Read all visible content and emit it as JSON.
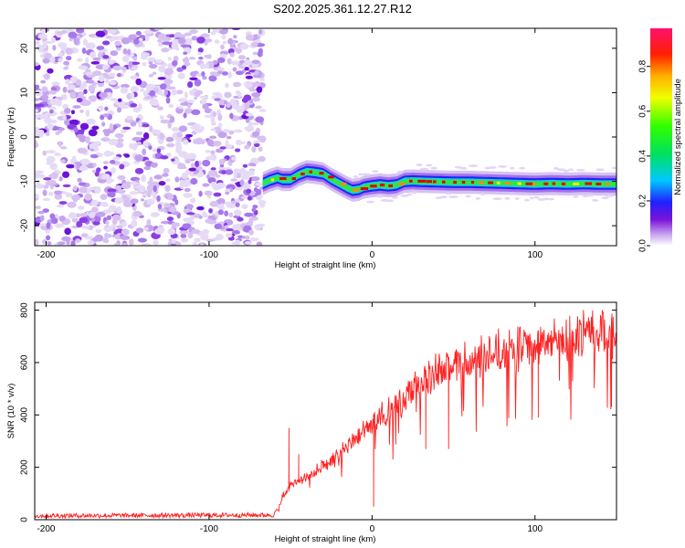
{
  "title": "S202.2025.361.12.27.R12",
  "colors": {
    "background": "#ffffff",
    "axes": "#000000",
    "snr_line": "#ff2020",
    "colormap": [
      "#ffffff",
      "#d9c4f2",
      "#b46cf0",
      "#7a13d8",
      "#2626ff",
      "#0fc8e8",
      "#12e040",
      "#ffff00",
      "#ff9000",
      "#e00000",
      "#ff2060"
    ]
  },
  "chart_data": [
    {
      "type": "heatmap",
      "id": "spectrogram",
      "xlabel": "Height of straight line (km)",
      "ylabel": "Frequency (Hz)",
      "xlim": [
        -207,
        150
      ],
      "ylim": [
        -24.5,
        24.5
      ],
      "xticks": [
        -200,
        -100,
        0,
        100
      ],
      "xtick_labels": [
        "-200",
        "-100",
        "0",
        "100"
      ],
      "yticks": [
        -20,
        -10,
        0,
        10,
        20
      ],
      "ytick_labels": [
        "-20",
        "-10",
        "0",
        "10",
        "20"
      ],
      "noise_region_x": [
        -207,
        -67
      ],
      "noise_amplitude_range": [
        0.0,
        0.35
      ],
      "signal_track": {
        "x": [
          -67,
          -63,
          -58,
          -55,
          -50,
          -45,
          -40,
          -35,
          -30,
          -25,
          -20,
          -15,
          -12,
          -8,
          -5,
          0,
          5,
          10,
          15,
          20,
          25,
          30,
          40,
          50,
          60,
          70,
          80,
          90,
          100,
          110,
          120,
          130,
          140,
          150
        ],
        "frequency_hz": [
          -10.5,
          -9.8,
          -9.2,
          -9.6,
          -9.6,
          -8.5,
          -7.8,
          -8.0,
          -8.3,
          -9.5,
          -10.5,
          -11.5,
          -12.0,
          -11.8,
          -11.3,
          -11.0,
          -10.8,
          -11.0,
          -10.8,
          -10.0,
          -9.9,
          -10.0,
          -10.1,
          -10.2,
          -10.2,
          -10.3,
          -10.4,
          -10.5,
          -10.6,
          -10.5,
          -10.6,
          -10.5,
          -10.6,
          -10.6
        ]
      },
      "colorbar": {
        "label": "Normalized spectral amplitude",
        "range": [
          0.0,
          0.97
        ],
        "ticks": [
          0.0,
          0.2,
          0.4,
          0.6,
          0.8
        ],
        "tick_labels": [
          "0.0",
          "0.2",
          "0.4",
          "0.6",
          "0.8"
        ]
      }
    },
    {
      "type": "line",
      "id": "snr",
      "xlabel": "Height of straight line (km)",
      "ylabel": "SNR (10 * v/v)",
      "xlim": [
        -207,
        150
      ],
      "ylim": [
        0,
        830
      ],
      "xticks": [
        -200,
        -100,
        0,
        100
      ],
      "xtick_labels": [
        "-200",
        "-100",
        "0",
        "100"
      ],
      "yticks": [
        0,
        200,
        400,
        600,
        800
      ],
      "ytick_labels": [
        "0",
        "200",
        "400",
        "600",
        "800"
      ],
      "series": [
        {
          "name": "SNR",
          "envelope_x": [
            -207,
            -60,
            -57,
            -55,
            -50,
            -40,
            -30,
            -20,
            -10,
            0,
            10,
            20,
            30,
            40,
            50,
            60,
            70,
            80,
            90,
            100,
            110,
            120,
            130,
            140,
            150
          ],
          "envelope_y": [
            15,
            18,
            60,
            100,
            140,
            170,
            220,
            270,
            330,
            400,
            440,
            490,
            560,
            600,
            630,
            650,
            670,
            690,
            705,
            720,
            735,
            750,
            760,
            765,
            770
          ],
          "spikes": [
            {
              "x": -51,
              "y": 350
            },
            {
              "x": -45,
              "y": 250
            },
            {
              "x": 1,
              "y": 50
            },
            {
              "x": 33,
              "y": 270
            },
            {
              "x": 47,
              "y": 270
            },
            {
              "x": 102,
              "y": 390
            },
            {
              "x": 147,
              "y": 430
            }
          ]
        }
      ]
    }
  ]
}
